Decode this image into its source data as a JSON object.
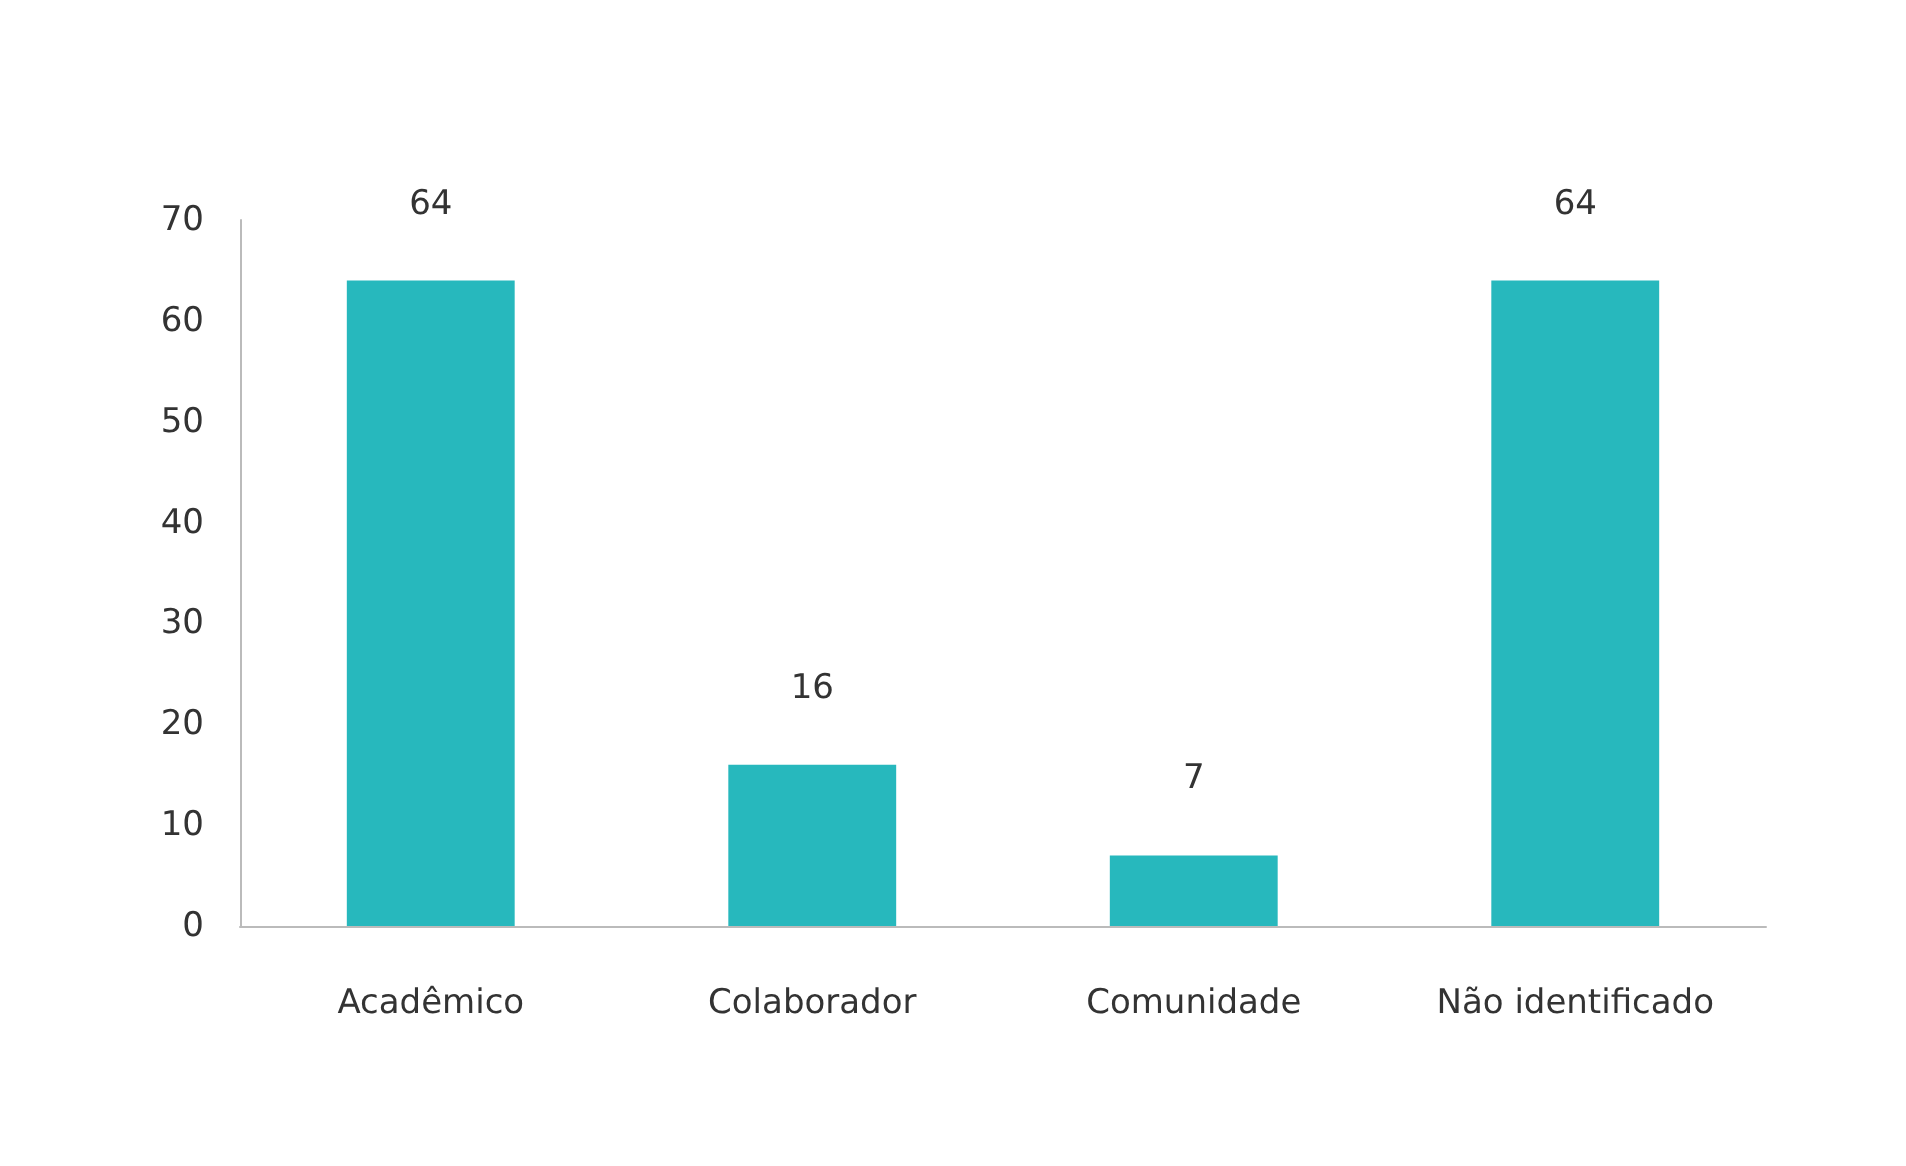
{
  "chart_data": {
    "type": "bar",
    "categories": [
      "Acadêmico",
      "Colaborador",
      "Comunidade",
      "Não identificado"
    ],
    "values": [
      64,
      16,
      7,
      64
    ],
    "color": "#27b8bd",
    "ylim": [
      0,
      70
    ],
    "yticks": [
      0,
      10,
      20,
      30,
      40,
      50,
      60,
      70
    ],
    "grid": false,
    "data_labels": true
  }
}
